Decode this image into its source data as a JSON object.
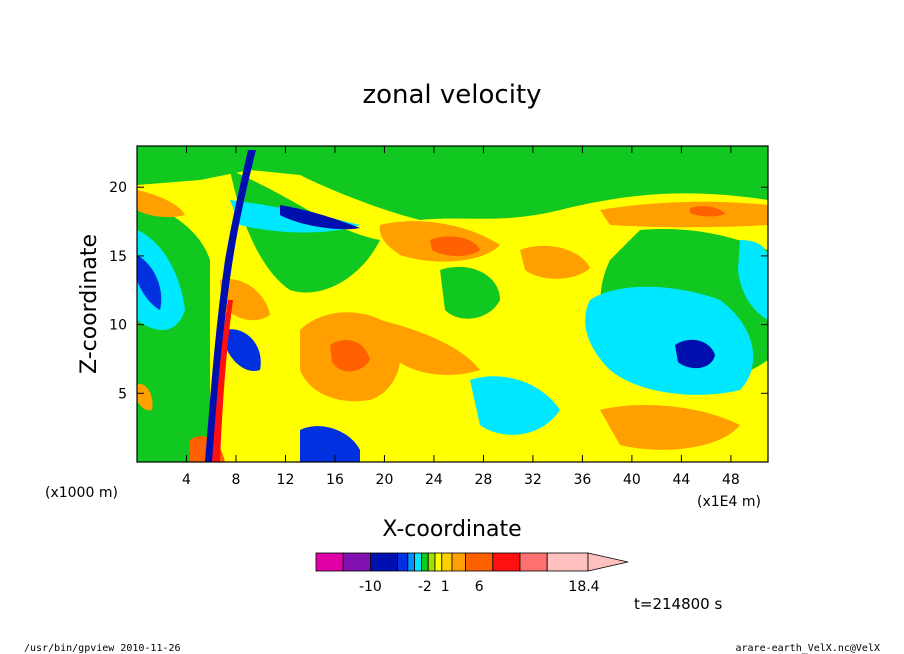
{
  "chart_data": {
    "type": "heatmap",
    "title": "zonal velocity",
    "xlabel": "X-coordinate",
    "ylabel": "Z-coordinate",
    "x_unit": "(x1E4 m)",
    "y_unit": "(x1000 m)",
    "xlim": [
      0,
      51
    ],
    "ylim": [
      0,
      23
    ],
    "x_ticks": [
      4,
      8,
      12,
      16,
      20,
      24,
      28,
      32,
      36,
      40,
      44,
      48
    ],
    "y_ticks": [
      5,
      10,
      15,
      20
    ],
    "colorbar": {
      "colors": [
        "#e000a8",
        "#8010b0",
        "#0010b0",
        "#0030e0",
        "#0090ff",
        "#00e8ff",
        "#10c820",
        "#a0e000",
        "#ffff00",
        "#ffd000",
        "#ffa000",
        "#ff6000",
        "#ff1010",
        "#ff7070",
        "#ffc0c0"
      ],
      "labels": [
        {
          "text": "-10",
          "at": -10
        },
        {
          "text": "-2",
          "at": -2
        },
        {
          "text": "1",
          "at": 1
        },
        {
          "text": "6",
          "at": 6
        },
        {
          "text": "18.4",
          "at": 18.4
        }
      ],
      "range": [
        -18,
        22
      ]
    },
    "time_label": "t=214800 s"
  },
  "footer": {
    "left": "/usr/bin/gpview   2010-11-26",
    "right": "arare-earth_VelX.nc@VelX"
  }
}
